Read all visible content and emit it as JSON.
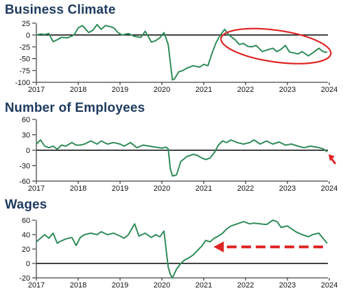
{
  "colors": {
    "line": "#2e8b57",
    "annotation": "#e02424",
    "zero": "#000000",
    "title": "#1d3a5f"
  },
  "chart_data": [
    {
      "type": "line",
      "title": "Business Climate",
      "x_tick_labels": [
        "2017",
        "2018",
        "2019",
        "2020",
        "2021",
        "2022",
        "2023",
        "2024"
      ],
      "y_tick_labels": [
        "25",
        "0",
        "-25",
        "-50",
        "-75",
        "-100"
      ],
      "ylim": [
        -100,
        25
      ],
      "xlim": [
        2017.0,
        2024.15
      ],
      "grid": false,
      "series": [
        {
          "x": [
            2017.0,
            2017.1,
            2017.2,
            2017.3,
            2017.4,
            2017.5,
            2017.6,
            2017.75,
            2017.9,
            2018.0,
            2018.1,
            2018.25,
            2018.35,
            2018.45,
            2018.55,
            2018.65,
            2018.75,
            2018.85,
            2018.95,
            2019.05,
            2019.2,
            2019.35,
            2019.5,
            2019.6,
            2019.75,
            2019.85,
            2019.95,
            2020.05,
            2020.15,
            2020.25,
            2020.3,
            2020.4,
            2020.5,
            2020.6,
            2020.75,
            2020.9,
            2021.0,
            2021.1,
            2021.2,
            2021.3,
            2021.4,
            2021.5,
            2021.6,
            2021.75,
            2021.85,
            2021.95,
            2022.05,
            2022.15,
            2022.25,
            2022.4,
            2022.5,
            2022.65,
            2022.75,
            2022.85,
            2022.95,
            2023.05,
            2023.15,
            2023.25,
            2023.35,
            2023.5,
            2023.6,
            2023.75,
            2023.85,
            2023.95
          ],
          "y": [
            0,
            2,
            1,
            3,
            -14,
            -10,
            -5,
            -6,
            0,
            15,
            20,
            5,
            10,
            22,
            12,
            20,
            18,
            15,
            5,
            0,
            3,
            -3,
            -5,
            8,
            -15,
            -12,
            -6,
            5,
            -20,
            -95,
            -93,
            -78,
            -75,
            -70,
            -65,
            -68,
            -62,
            -65,
            -38,
            -15,
            0,
            12,
            0,
            -10,
            -20,
            -18,
            -24,
            -25,
            -22,
            -35,
            -32,
            -28,
            -35,
            -30,
            -22,
            -36,
            -38,
            -40,
            -35,
            -44,
            -38,
            -28,
            -35,
            -37
          ]
        }
      ],
      "annotations": [
        {
          "type": "ellipse",
          "from": [
            2021.4,
            10
          ],
          "to": [
            2024.05,
            -57
          ]
        }
      ]
    },
    {
      "type": "line",
      "title": "Number of Employees",
      "x_tick_labels": [
        "2017",
        "2018",
        "2019",
        "2020",
        "2021",
        "2022",
        "2023",
        "2024"
      ],
      "y_tick_labels": [
        "60",
        "30",
        "0",
        "-30",
        "-60"
      ],
      "ylim": [
        -60,
        60
      ],
      "xlim": [
        2017.0,
        2024.15
      ],
      "grid": false,
      "series": [
        {
          "x": [
            2017.0,
            2017.1,
            2017.2,
            2017.3,
            2017.4,
            2017.5,
            2017.6,
            2017.7,
            2017.85,
            2017.95,
            2018.05,
            2018.15,
            2018.3,
            2018.45,
            2018.55,
            2018.7,
            2018.85,
            2019.0,
            2019.1,
            2019.25,
            2019.4,
            2019.55,
            2019.7,
            2019.85,
            2020.0,
            2020.1,
            2020.15,
            2020.2,
            2020.25,
            2020.35,
            2020.45,
            2020.6,
            2020.75,
            2020.85,
            2020.95,
            2021.05,
            2021.15,
            2021.25,
            2021.35,
            2021.45,
            2021.55,
            2021.65,
            2021.8,
            2021.95,
            2022.1,
            2022.2,
            2022.35,
            2022.5,
            2022.65,
            2022.8,
            2022.95,
            2023.1,
            2023.25,
            2023.4,
            2023.55,
            2023.7,
            2023.85,
            2023.95
          ],
          "y": [
            12,
            20,
            8,
            5,
            8,
            2,
            10,
            8,
            15,
            10,
            10,
            12,
            18,
            12,
            18,
            12,
            15,
            12,
            8,
            15,
            5,
            10,
            8,
            6,
            4,
            6,
            3,
            -35,
            -50,
            -48,
            -22,
            -12,
            -8,
            -10,
            -15,
            -18,
            -15,
            -5,
            10,
            18,
            15,
            20,
            15,
            12,
            15,
            20,
            12,
            18,
            12,
            16,
            10,
            12,
            8,
            5,
            8,
            6,
            3,
            -3
          ]
        }
      ],
      "annotations": [
        {
          "type": "arrow",
          "at": [
            2023.95,
            -5
          ]
        }
      ]
    },
    {
      "type": "line",
      "title": "Wages",
      "x_tick_labels": [
        "2017",
        "2018",
        "2019",
        "2020",
        "2021",
        "2022",
        "2023",
        "2024"
      ],
      "y_tick_labels": [
        "60",
        "40",
        "20",
        "0",
        "-20"
      ],
      "ylim": [
        -20,
        60
      ],
      "xlim": [
        2017.0,
        2024.15
      ],
      "grid": false,
      "series": [
        {
          "x": [
            2017.0,
            2017.1,
            2017.2,
            2017.3,
            2017.4,
            2017.5,
            2017.55,
            2017.7,
            2017.85,
            2017.95,
            2018.05,
            2018.15,
            2018.3,
            2018.45,
            2018.55,
            2018.7,
            2018.85,
            2019.0,
            2019.1,
            2019.2,
            2019.35,
            2019.45,
            2019.6,
            2019.75,
            2019.85,
            2019.95,
            2020.05,
            2020.15,
            2020.2,
            2020.25,
            2020.35,
            2020.45,
            2020.55,
            2020.65,
            2020.75,
            2020.85,
            2020.95,
            2021.05,
            2021.15,
            2021.25,
            2021.35,
            2021.45,
            2021.55,
            2021.65,
            2021.8,
            2021.95,
            2022.1,
            2022.2,
            2022.35,
            2022.5,
            2022.65,
            2022.75,
            2022.85,
            2023.0,
            2023.1,
            2023.2,
            2023.35,
            2023.5,
            2023.6,
            2023.75,
            2023.85,
            2023.95
          ],
          "y": [
            30,
            35,
            40,
            35,
            42,
            28,
            30,
            34,
            36,
            25,
            36,
            40,
            42,
            40,
            44,
            40,
            42,
            38,
            35,
            40,
            55,
            38,
            42,
            36,
            40,
            37,
            45,
            -5,
            -15,
            -20,
            -8,
            0,
            5,
            8,
            12,
            18,
            24,
            32,
            30,
            35,
            38,
            42,
            48,
            52,
            55,
            58,
            55,
            56,
            55,
            54,
            60,
            58,
            50,
            52,
            48,
            44,
            40,
            37,
            40,
            42,
            35,
            28
          ]
        }
      ],
      "annotations": [
        {
          "type": "dashed-arrow",
          "from": [
            2023.85,
            23
          ],
          "to": [
            2021.25,
            23
          ]
        }
      ]
    }
  ]
}
